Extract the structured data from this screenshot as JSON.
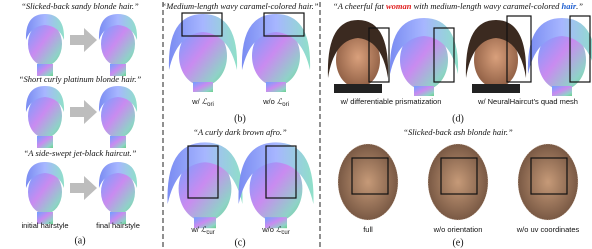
{
  "panels": {
    "a": {
      "prompts": [
        "“Slicked-back sandy blonde hair.”",
        "“Short curly platinum blonde hair.”",
        "“A side-swept jet-black haircut.”"
      ],
      "labels": [
        "initial hairstyle",
        "final hairstyle"
      ],
      "tag": "(a)"
    },
    "b": {
      "prompt": "“Medium-length wavy caramel-colored hair.”",
      "labels": [
        {
          "prefix": "w/ ",
          "symbol": "ℒ",
          "subscript": "ori"
        },
        {
          "prefix": "w/o ",
          "symbol": "ℒ",
          "subscript": "ori"
        }
      ],
      "tag": "(b)"
    },
    "c": {
      "prompt": "“A curly dark brown afro.”",
      "labels": [
        {
          "prefix": "w/ ",
          "symbol": "ℒ",
          "subscript": "cur"
        },
        {
          "prefix": "w/o ",
          "symbol": "ℒ",
          "subscript": "cur"
        }
      ],
      "tag": "(c)"
    },
    "d": {
      "prompt": [
        "“A cheerful fat ",
        "woman",
        " with medium-length wavy caramel-colored ",
        "hair",
        ".”"
      ],
      "labels": [
        "w/ differentiable prismatization",
        "w/ NeuralHaircut’s quad mesh"
      ],
      "tag": "(d)"
    },
    "e": {
      "prompt": "“Slicked-back ash blonde hair.”",
      "labels": [
        "full",
        "w/o orientation",
        "w/o uv coordinates"
      ],
      "tag": "(e)"
    }
  }
}
